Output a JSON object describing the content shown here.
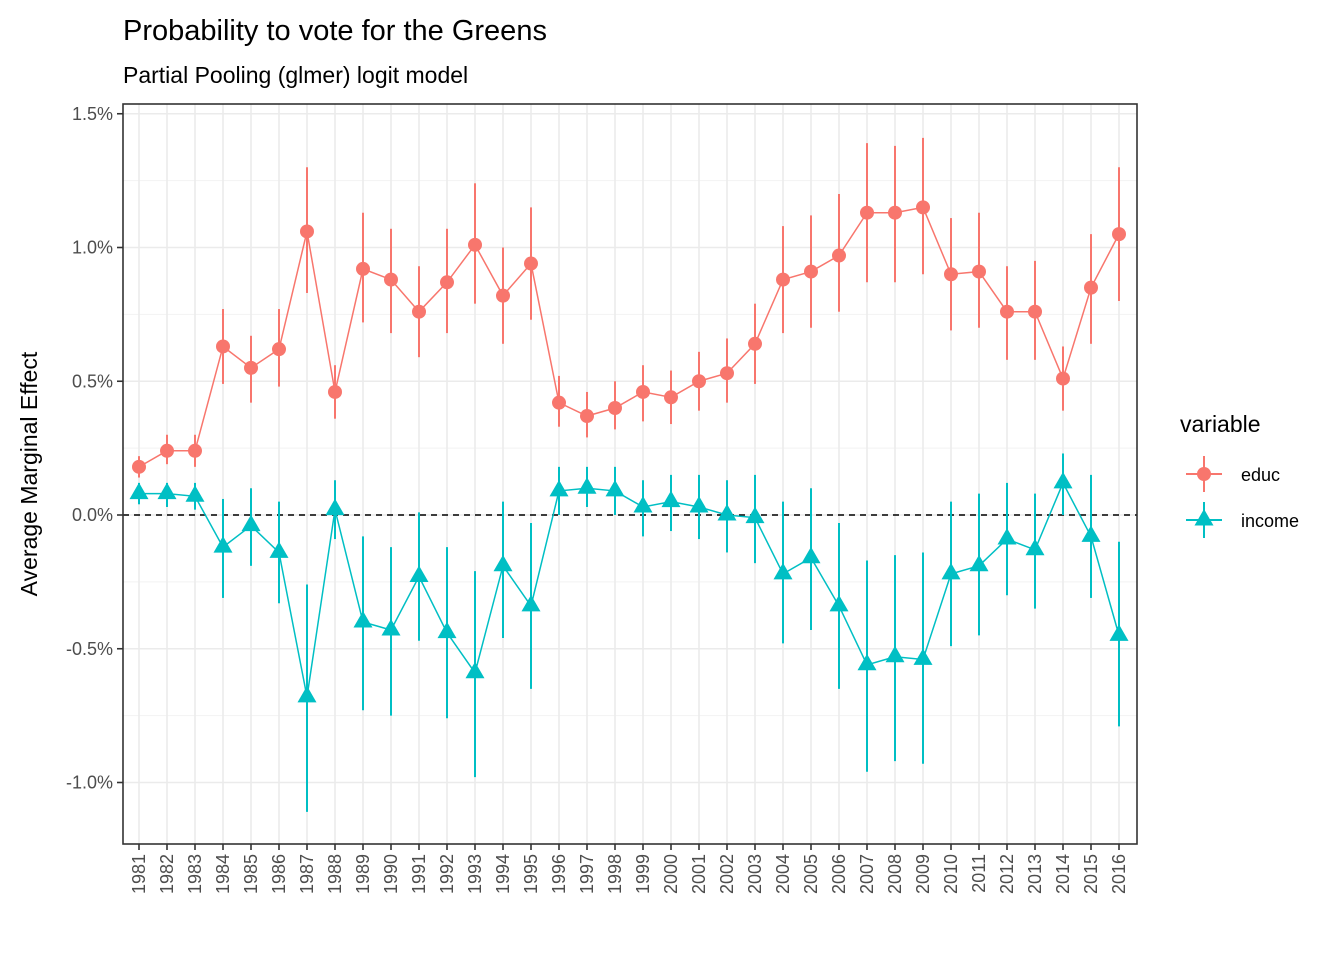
{
  "chart_data": {
    "type": "line",
    "title": "Probability to vote for the Greens",
    "subtitle": "Partial Pooling (glmer) logit model",
    "xlabel": "",
    "ylabel": "Average Marginal Effect",
    "y_unit": "percent",
    "ylim": [
      -1.23,
      1.535
    ],
    "yticks": [
      1.5,
      1.0,
      0.5,
      0.0,
      -0.5,
      -1.0
    ],
    "ytick_labels": [
      "1.5%",
      "1.0%",
      "0.5%",
      "0.0%",
      "-0.5%",
      "-1.0%"
    ],
    "grid": true,
    "reference_line": {
      "y": 0.0,
      "style": "dashed",
      "color": "#000000"
    },
    "x": [
      "1981",
      "1982",
      "1983",
      "1984",
      "1985",
      "1986",
      "1987",
      "1988",
      "1989",
      "1990",
      "1991",
      "1992",
      "1993",
      "1994",
      "1995",
      "1996",
      "1997",
      "1998",
      "1999",
      "2000",
      "2001",
      "2002",
      "2003",
      "2004",
      "2005",
      "2006",
      "2007",
      "2008",
      "2009",
      "2010",
      "2011",
      "2012",
      "2013",
      "2014",
      "2015",
      "2016"
    ],
    "legend": {
      "title": "variable",
      "position": "right"
    },
    "series": [
      {
        "name": "educ",
        "color": "#F8766D",
        "marker": "circle",
        "values": [
          0.18,
          0.24,
          0.24,
          0.63,
          0.55,
          0.62,
          1.06,
          0.46,
          0.92,
          0.88,
          0.76,
          0.87,
          1.01,
          0.82,
          0.94,
          0.42,
          0.37,
          0.4,
          0.46,
          0.44,
          0.5,
          0.53,
          0.64,
          0.88,
          0.91,
          0.97,
          1.13,
          1.13,
          1.15,
          0.9,
          0.91,
          0.76,
          0.76,
          0.51,
          0.85,
          1.05
        ],
        "lower": [
          0.14,
          0.19,
          0.18,
          0.49,
          0.42,
          0.48,
          0.83,
          0.36,
          0.72,
          0.68,
          0.59,
          0.68,
          0.79,
          0.64,
          0.73,
          0.33,
          0.29,
          0.32,
          0.35,
          0.34,
          0.39,
          0.42,
          0.49,
          0.68,
          0.7,
          0.76,
          0.87,
          0.87,
          0.9,
          0.69,
          0.7,
          0.58,
          0.58,
          0.39,
          0.64,
          0.8
        ],
        "upper": [
          0.22,
          0.3,
          0.3,
          0.77,
          0.67,
          0.77,
          1.3,
          0.56,
          1.13,
          1.07,
          0.93,
          1.07,
          1.24,
          1.0,
          1.15,
          0.52,
          0.46,
          0.5,
          0.56,
          0.54,
          0.61,
          0.66,
          0.79,
          1.08,
          1.12,
          1.2,
          1.39,
          1.38,
          1.41,
          1.11,
          1.13,
          0.93,
          0.95,
          0.63,
          1.05,
          1.3
        ]
      },
      {
        "name": "income",
        "color": "#00BFC4",
        "marker": "triangle",
        "values": [
          0.08,
          0.08,
          0.07,
          -0.12,
          -0.04,
          -0.14,
          -0.68,
          0.02,
          -0.4,
          -0.43,
          -0.23,
          -0.44,
          -0.59,
          -0.19,
          -0.34,
          0.09,
          0.1,
          0.09,
          0.03,
          0.05,
          0.03,
          0.0,
          -0.01,
          -0.22,
          -0.16,
          -0.34,
          -0.56,
          -0.53,
          -0.54,
          -0.22,
          -0.19,
          -0.09,
          -0.13,
          0.12,
          -0.08,
          -0.45
        ],
        "lower": [
          0.04,
          0.03,
          0.02,
          -0.31,
          -0.19,
          -0.33,
          -1.11,
          -0.09,
          -0.73,
          -0.75,
          -0.47,
          -0.76,
          -0.98,
          -0.46,
          -0.65,
          0.0,
          0.03,
          0.0,
          -0.08,
          -0.06,
          -0.09,
          -0.14,
          -0.18,
          -0.48,
          -0.43,
          -0.65,
          -0.96,
          -0.92,
          -0.93,
          -0.49,
          -0.45,
          -0.3,
          -0.35,
          0.0,
          -0.31,
          -0.79
        ],
        "upper": [
          0.12,
          0.12,
          0.12,
          0.06,
          0.1,
          0.05,
          -0.26,
          0.13,
          -0.08,
          -0.12,
          0.01,
          -0.12,
          -0.21,
          0.05,
          -0.03,
          0.18,
          0.18,
          0.18,
          0.13,
          0.15,
          0.15,
          0.13,
          0.15,
          0.05,
          0.1,
          -0.03,
          -0.17,
          -0.15,
          -0.14,
          0.05,
          0.08,
          0.12,
          0.08,
          0.23,
          0.15,
          -0.1
        ]
      }
    ]
  }
}
